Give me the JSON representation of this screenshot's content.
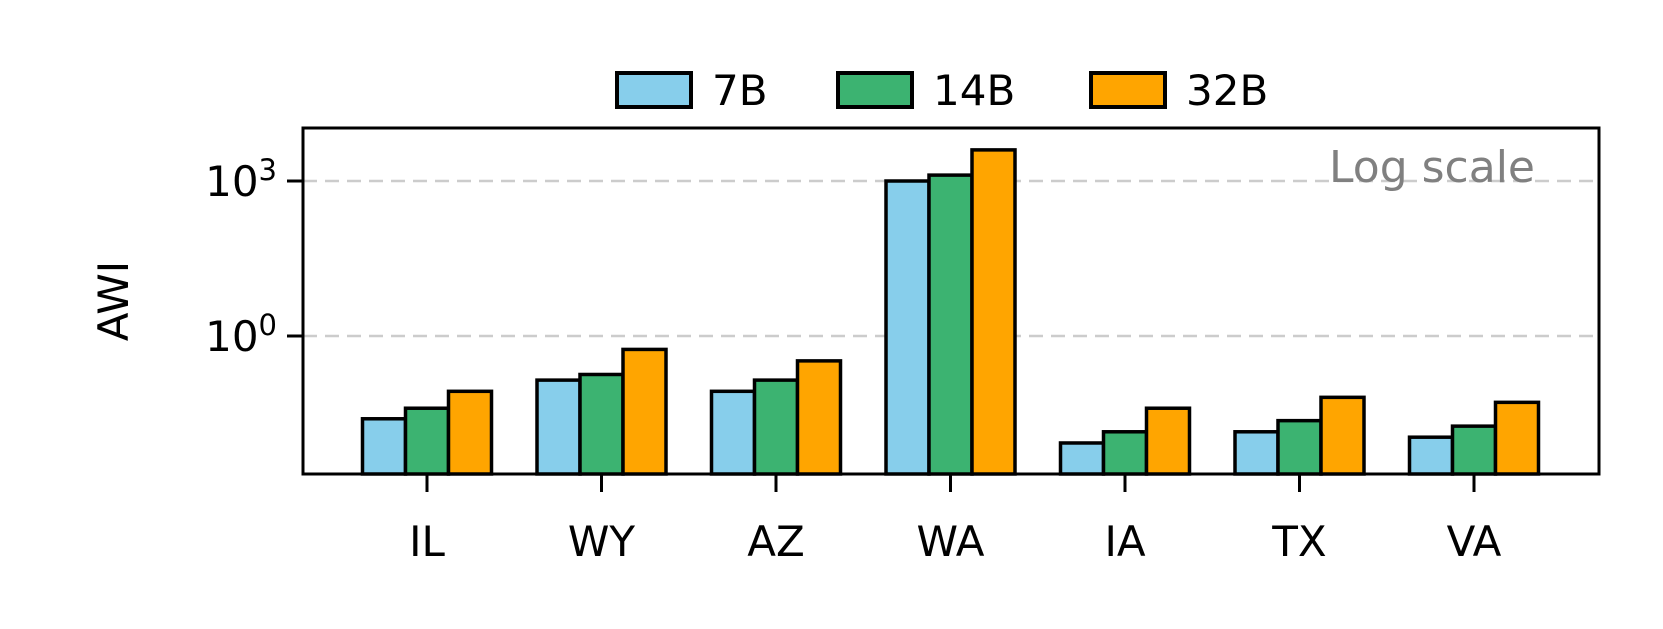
{
  "chart_data": {
    "type": "bar",
    "title": "",
    "xlabel": "",
    "ylabel": "AWI",
    "yscale": "log",
    "ylim": [
      0.005,
      5000
    ],
    "yticks": [
      {
        "value": 1,
        "base": "10",
        "exp": "0"
      },
      {
        "value": 1000,
        "base": "10",
        "exp": "3"
      }
    ],
    "grid": "horizontal dashed",
    "legend_position": "top-center",
    "annotation": "Log scale",
    "categories": [
      "IL",
      "WY",
      "AZ",
      "WA",
      "IA",
      "TX",
      "VA"
    ],
    "series": [
      {
        "name": "7B",
        "color": "#87CEEB",
        "values": [
          0.025,
          0.14,
          0.085,
          1000,
          0.0085,
          0.014,
          0.011
        ]
      },
      {
        "name": "14B",
        "color": "#3CB371",
        "values": [
          0.04,
          0.18,
          0.14,
          1300,
          0.014,
          0.023,
          0.018
        ]
      },
      {
        "name": "32B",
        "color": "#FFA500",
        "values": [
          0.085,
          0.55,
          0.33,
          4000,
          0.04,
          0.065,
          0.052
        ]
      }
    ]
  }
}
